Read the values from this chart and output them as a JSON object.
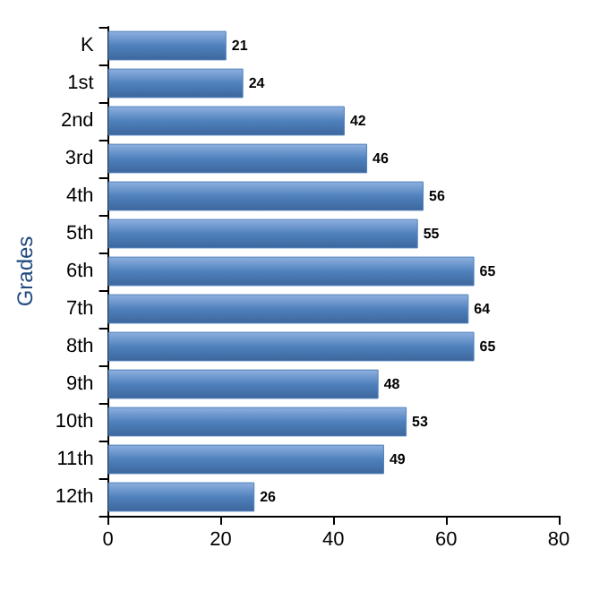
{
  "chart_data": {
    "type": "bar",
    "orientation": "horizontal",
    "ylabel": "Grades",
    "categories": [
      "K",
      "1st",
      "2nd",
      "3rd",
      "4th",
      "5th",
      "6th",
      "7th",
      "8th",
      "9th",
      "10th",
      "11th",
      "12th"
    ],
    "values": [
      21,
      24,
      42,
      46,
      56,
      55,
      65,
      64,
      65,
      48,
      53,
      49,
      26
    ],
    "color": "#4f81bd",
    "xlim": [
      0,
      80
    ],
    "xticks": [
      0,
      20,
      40,
      60,
      80
    ],
    "grid": false,
    "data_labels": true
  }
}
